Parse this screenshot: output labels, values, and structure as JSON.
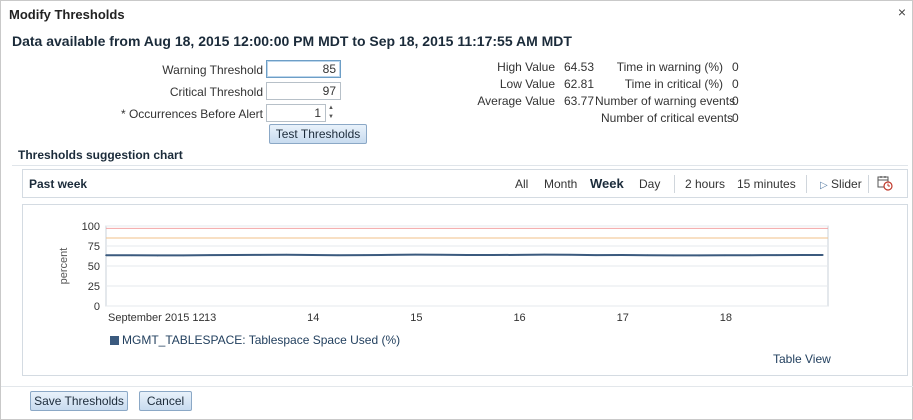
{
  "dialog": {
    "title": "Modify Thresholds",
    "close_glyph": "×",
    "headline": "Data available from Aug 18, 2015 12:00:00 PM MDT to Sep 18, 2015 11:17:55 AM MDT"
  },
  "form": {
    "warning_label": "Warning Threshold",
    "warning_value": "85",
    "critical_label": "Critical Threshold",
    "critical_value": "97",
    "occurrences_label": "* Occurrences Before Alert",
    "occurrences_value": "1",
    "test_button": "Test Thresholds"
  },
  "stats": {
    "high_label": "High Value",
    "high_value": "64.53",
    "low_label": "Low Value",
    "low_value": "62.81",
    "avg_label": "Average Value",
    "avg_value": "63.77",
    "warn_time_label": "Time in warning (%)",
    "warn_time_value": "0",
    "crit_time_label": "Time in critical (%)",
    "crit_time_value": "0",
    "warn_events_label": "Number of warning events",
    "warn_events_value": "0",
    "crit_events_label": "Number of critical events",
    "crit_events_value": "0"
  },
  "section_title": "Thresholds suggestion chart",
  "chart_panel": {
    "title": "Past week",
    "ranges": [
      "All",
      "Month",
      "Week",
      "Day",
      "2 hours",
      "15 minutes"
    ],
    "active_range": "Week",
    "slider_label": "Slider",
    "slider_icon": "play-icon",
    "calendar_icon": "calendar-clock-icon",
    "table_view": "Table View"
  },
  "chart_data": {
    "type": "line",
    "ylabel": "percent",
    "xlabel": "",
    "ylim": [
      0,
      100
    ],
    "yticks": [
      0,
      25,
      50,
      75,
      100
    ],
    "xticks": [
      "September 2015 12",
      "13",
      "14",
      "15",
      "16",
      "17",
      "18"
    ],
    "xrange": [
      0,
      7
    ],
    "thresholds": [
      {
        "name": "warning",
        "value": 85,
        "color": "#f2c28a"
      },
      {
        "name": "critical",
        "value": 97,
        "color": "#f2a4a4"
      }
    ],
    "series": [
      {
        "name": "MGMT_TABLESPACE: Tablespace Space Used (%)",
        "color": "#3b5a7e",
        "x": [
          0,
          0.25,
          0.5,
          0.75,
          1.0,
          1.25,
          1.5,
          1.75,
          2.0,
          2.25,
          2.5,
          2.75,
          3.0,
          3.25,
          3.5,
          3.75,
          4.0,
          4.25,
          4.5,
          4.75,
          5.0,
          5.25,
          5.5,
          5.75,
          6.0,
          6.25,
          6.5,
          6.75,
          6.95
        ],
        "values": [
          63.5,
          63.4,
          63.2,
          63.3,
          63.6,
          63.8,
          63.9,
          64.1,
          63.7,
          63.5,
          63.6,
          63.9,
          64.2,
          64.0,
          63.8,
          63.7,
          63.9,
          64.2,
          64.0,
          63.6,
          63.7,
          63.5,
          63.3,
          63.2,
          63.4,
          63.5,
          63.6,
          63.7,
          63.8
        ]
      }
    ],
    "grid": true,
    "legend_position": "bottom-left"
  },
  "footer": {
    "save_button": "Save Thresholds",
    "cancel_button": "Cancel"
  },
  "colors": {
    "button_border": "#8ba8c6",
    "line": "#3b5a7e"
  }
}
